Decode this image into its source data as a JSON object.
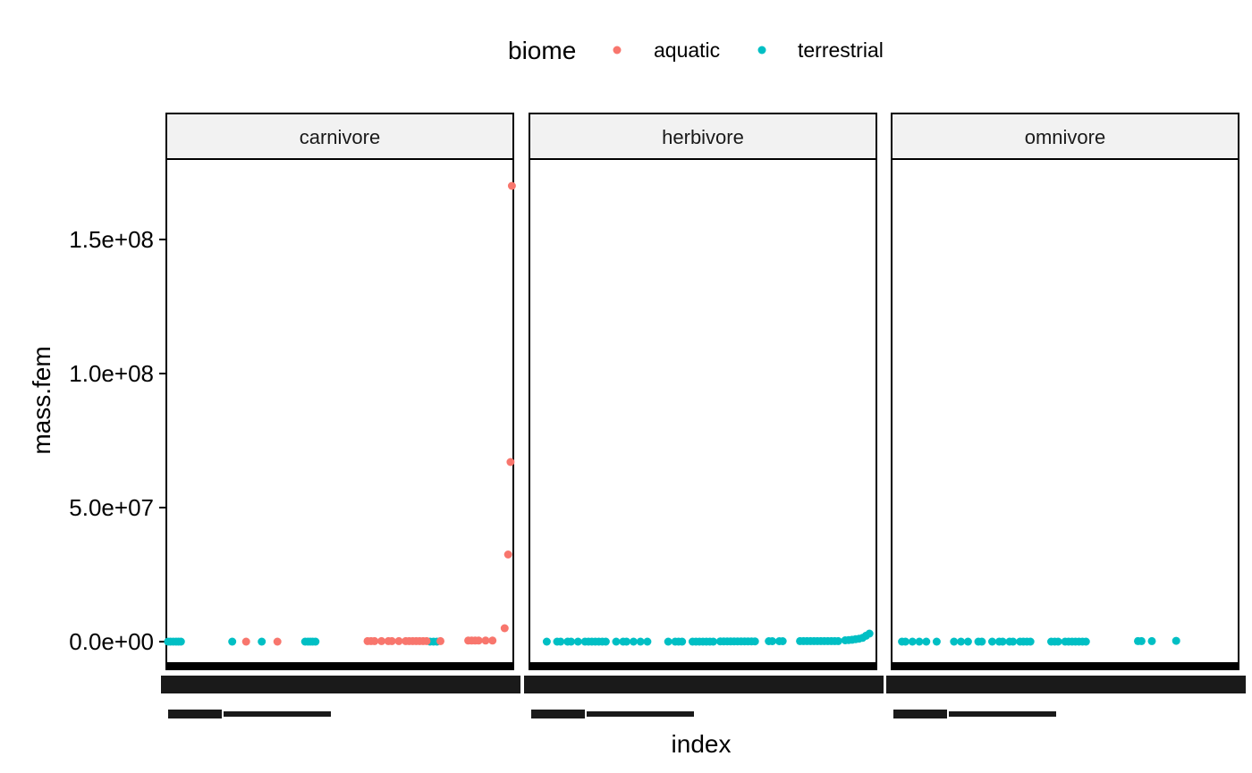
{
  "chart_data": {
    "type": "scatter",
    "legend": {
      "title": "biome",
      "position": "top",
      "entries": [
        {
          "label": "aquatic",
          "color": "#F8766D"
        },
        {
          "label": "terrestrial",
          "color": "#00BFC4"
        }
      ]
    },
    "xlabel": "index",
    "ylabel": "mass.fem",
    "ylim": [
      -8000000,
      180000000
    ],
    "yticks": [
      0,
      50000000,
      100000000,
      150000000
    ],
    "ytick_labels": [
      "0.0e+00",
      "5.0e+07",
      "1.0e+08",
      "1.5e+08"
    ],
    "grid": false,
    "panels": [
      {
        "label": "carnivore",
        "xlim": [
          0,
          100
        ],
        "series": [
          {
            "name": "terrestrial",
            "points": [
              [
                0.5,
                0
              ],
              [
                1.2,
                0
              ],
              [
                2,
                0
              ],
              [
                2.8,
                0
              ],
              [
                3.5,
                0
              ],
              [
                4.2,
                0
              ],
              [
                19,
                0
              ],
              [
                27.5,
                0
              ],
              [
                40,
                0
              ],
              [
                40.8,
                0
              ],
              [
                41.5,
                0
              ],
              [
                42.2,
                0
              ],
              [
                43,
                0
              ],
              [
                76,
                0
              ],
              [
                77,
                0
              ],
              [
                78,
                0
              ]
            ]
          },
          {
            "name": "aquatic",
            "points": [
              [
                23,
                0
              ],
              [
                32,
                0
              ],
              [
                58,
                200000
              ],
              [
                59,
                200000
              ],
              [
                60,
                200000
              ],
              [
                62,
                200000
              ],
              [
                64,
                200000
              ],
              [
                65,
                200000
              ],
              [
                67,
                200000
              ],
              [
                69,
                200000
              ],
              [
                70,
                200000
              ],
              [
                71,
                200000
              ],
              [
                72,
                200000
              ],
              [
                73,
                200000
              ],
              [
                74,
                200000
              ],
              [
                75,
                200000
              ],
              [
                79,
                200000
              ],
              [
                87,
                400000
              ],
              [
                88,
                400000
              ],
              [
                89,
                400000
              ],
              [
                90,
                400000
              ],
              [
                92,
                400000
              ],
              [
                94,
                400000
              ],
              [
                97.5,
                5000000
              ],
              [
                98.5,
                32500000
              ],
              [
                99.2,
                67000000
              ],
              [
                99.6,
                170000000
              ]
            ]
          }
        ]
      },
      {
        "label": "herbivore",
        "xlim": [
          0,
          100
        ],
        "series": [
          {
            "name": "terrestrial",
            "points": [
              [
                5,
                0
              ],
              [
                8,
                0
              ],
              [
                9,
                0
              ],
              [
                11,
                0
              ],
              [
                12,
                0
              ],
              [
                14,
                0
              ],
              [
                16,
                0
              ],
              [
                17,
                0
              ],
              [
                18,
                0
              ],
              [
                19,
                0
              ],
              [
                20,
                0
              ],
              [
                21,
                0
              ],
              [
                22,
                0
              ],
              [
                25,
                0
              ],
              [
                27,
                0
              ],
              [
                28,
                0
              ],
              [
                30,
                0
              ],
              [
                32,
                0
              ],
              [
                34,
                0
              ],
              [
                40,
                0
              ],
              [
                42,
                0
              ],
              [
                43,
                0
              ],
              [
                44,
                0
              ],
              [
                47,
                0
              ],
              [
                48,
                0
              ],
              [
                49,
                0
              ],
              [
                50,
                0
              ],
              [
                51,
                0
              ],
              [
                52,
                0
              ],
              [
                53,
                0
              ],
              [
                55,
                100000
              ],
              [
                56,
                100000
              ],
              [
                57,
                100000
              ],
              [
                58,
                100000
              ],
              [
                59,
                100000
              ],
              [
                60,
                100000
              ],
              [
                61,
                100000
              ],
              [
                62,
                100000
              ],
              [
                63,
                100000
              ],
              [
                64,
                100000
              ],
              [
                65,
                100000
              ],
              [
                69,
                150000
              ],
              [
                70,
                150000
              ],
              [
                72,
                150000
              ],
              [
                73,
                150000
              ],
              [
                78,
                200000
              ],
              [
                79,
                200000
              ],
              [
                80,
                200000
              ],
              [
                81,
                200000
              ],
              [
                82,
                200000
              ],
              [
                83,
                200000
              ],
              [
                84,
                200000
              ],
              [
                85,
                200000
              ],
              [
                86,
                200000
              ],
              [
                87,
                200000
              ],
              [
                88,
                200000
              ],
              [
                89,
                200000
              ],
              [
                91,
                500000
              ],
              [
                92,
                600000
              ],
              [
                93,
                700000
              ],
              [
                94,
                900000
              ],
              [
                95,
                1100000
              ],
              [
                96,
                1400000
              ],
              [
                97,
                2200000
              ],
              [
                98,
                3000000
              ]
            ]
          }
        ]
      },
      {
        "label": "omnivore",
        "xlim": [
          0,
          100
        ],
        "series": [
          {
            "name": "terrestrial",
            "points": [
              [
                3,
                0
              ],
              [
                4,
                0
              ],
              [
                6,
                0
              ],
              [
                8,
                0
              ],
              [
                10,
                0
              ],
              [
                13,
                0
              ],
              [
                18,
                0
              ],
              [
                20,
                0
              ],
              [
                22,
                0
              ],
              [
                25,
                0
              ],
              [
                26,
                0
              ],
              [
                29,
                0
              ],
              [
                31,
                0
              ],
              [
                32,
                0
              ],
              [
                34,
                0
              ],
              [
                35,
                0
              ],
              [
                37,
                0
              ],
              [
                38,
                0
              ],
              [
                39,
                0
              ],
              [
                40,
                0
              ],
              [
                46,
                0
              ],
              [
                47,
                0
              ],
              [
                48,
                0
              ],
              [
                50,
                0
              ],
              [
                51,
                0
              ],
              [
                52,
                0
              ],
              [
                53,
                0
              ],
              [
                54,
                0
              ],
              [
                55,
                0
              ],
              [
                56,
                0
              ],
              [
                71,
                200000
              ],
              [
                72,
                200000
              ],
              [
                75,
                200000
              ],
              [
                82,
                300000
              ]
            ]
          }
        ]
      }
    ]
  },
  "colors": {
    "aquatic": "#F8766D",
    "terrestrial": "#00BFC4"
  }
}
